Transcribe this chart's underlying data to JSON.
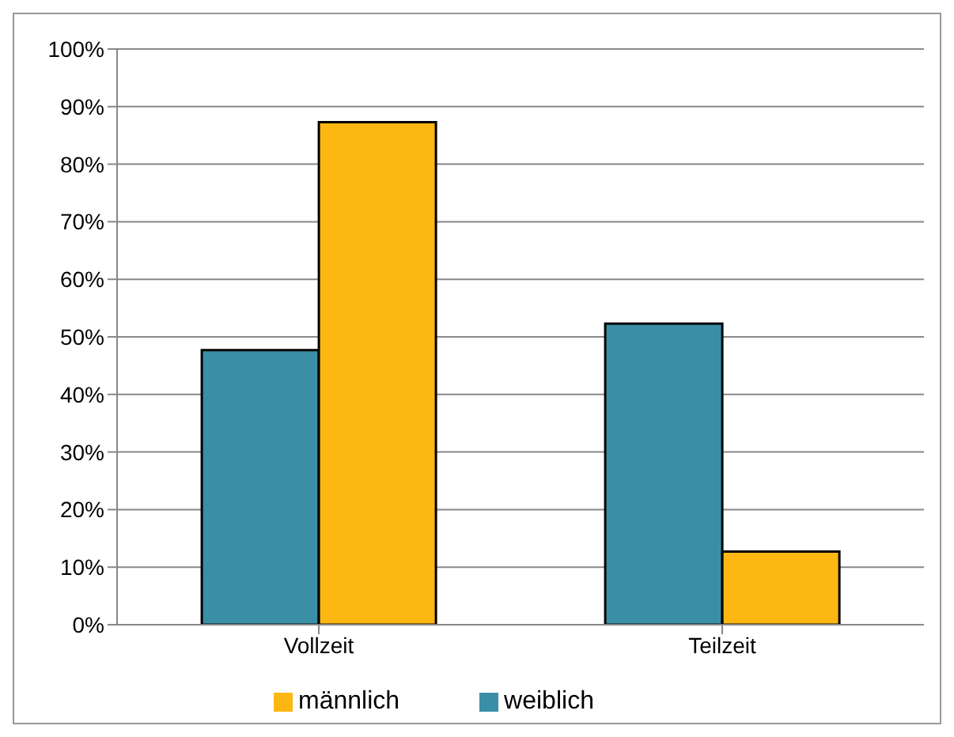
{
  "chart_data": {
    "type": "bar",
    "categories": [
      "Vollzeit",
      "Teilzeit"
    ],
    "series": [
      {
        "name": "weiblich",
        "color": "#3a8fa6",
        "values": [
          47.7,
          52.3
        ]
      },
      {
        "name": "männlich",
        "color": "#fdb713",
        "values": [
          87.3,
          12.7
        ]
      }
    ],
    "ylim": [
      0,
      100
    ],
    "yticks": [
      {
        "value": 0,
        "label": "0%"
      },
      {
        "value": 10,
        "label": "10%"
      },
      {
        "value": 20,
        "label": "20%"
      },
      {
        "value": 30,
        "label": "30%"
      },
      {
        "value": 40,
        "label": "40%"
      },
      {
        "value": 50,
        "label": "50%"
      },
      {
        "value": 60,
        "label": "60%"
      },
      {
        "value": 70,
        "label": "70%"
      },
      {
        "value": 80,
        "label": "80%"
      },
      {
        "value": 90,
        "label": "90%"
      },
      {
        "value": 100,
        "label": "100%"
      }
    ],
    "grid": "y",
    "legend": "bottom"
  }
}
